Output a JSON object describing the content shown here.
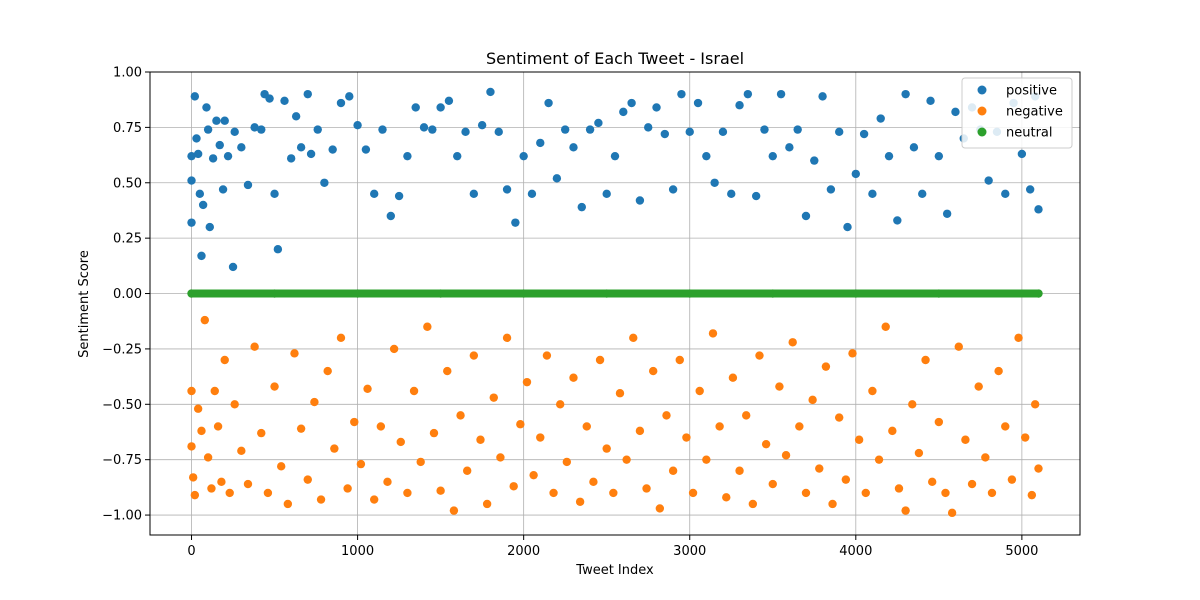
{
  "chart_data": {
    "type": "scatter",
    "title": "Sentiment of Each Tweet - Israel",
    "xlabel": "Tweet Index",
    "ylabel": "Sentiment Score",
    "xlim": [
      -250,
      5350
    ],
    "ylim": [
      -1.09,
      1.0
    ],
    "xticks": [
      0,
      1000,
      2000,
      3000,
      4000,
      5000
    ],
    "yticks": [
      -1.0,
      -0.75,
      -0.5,
      -0.25,
      0.0,
      0.25,
      0.5,
      0.75,
      1.0
    ],
    "xtick_labels": [
      "0",
      "1000",
      "2000",
      "3000",
      "4000",
      "5000"
    ],
    "ytick_labels": [
      "−1.00",
      "−0.75",
      "−0.50",
      "−0.25",
      "0.00",
      "0.25",
      "0.50",
      "0.75",
      "1.00"
    ],
    "grid": true,
    "legend_position": "top-right",
    "x_range_of_points": [
      0,
      5100
    ],
    "series": [
      {
        "name": "positive",
        "color": "#1f77b4",
        "points": [
          [
            0,
            0.62
          ],
          [
            0,
            0.51
          ],
          [
            0,
            0.32
          ],
          [
            20,
            0.89
          ],
          [
            30,
            0.7
          ],
          [
            40,
            0.63
          ],
          [
            50,
            0.45
          ],
          [
            60,
            0.17
          ],
          [
            70,
            0.4
          ],
          [
            90,
            0.84
          ],
          [
            100,
            0.74
          ],
          [
            110,
            0.3
          ],
          [
            130,
            0.61
          ],
          [
            150,
            0.78
          ],
          [
            170,
            0.67
          ],
          [
            190,
            0.47
          ],
          [
            200,
            0.78
          ],
          [
            220,
            0.62
          ],
          [
            250,
            0.12
          ],
          [
            260,
            0.73
          ],
          [
            300,
            0.66
          ],
          [
            340,
            0.49
          ],
          [
            380,
            0.75
          ],
          [
            420,
            0.74
          ],
          [
            440,
            0.9
          ],
          [
            470,
            0.88
          ],
          [
            500,
            0.45
          ],
          [
            520,
            0.2
          ],
          [
            560,
            0.87
          ],
          [
            600,
            0.61
          ],
          [
            630,
            0.8
          ],
          [
            660,
            0.66
          ],
          [
            700,
            0.9
          ],
          [
            720,
            0.63
          ],
          [
            760,
            0.74
          ],
          [
            800,
            0.5
          ],
          [
            850,
            0.65
          ],
          [
            900,
            0.86
          ],
          [
            950,
            0.89
          ],
          [
            1000,
            0.76
          ],
          [
            1050,
            0.65
          ],
          [
            1100,
            0.45
          ],
          [
            1150,
            0.74
          ],
          [
            1200,
            0.35
          ],
          [
            1250,
            0.44
          ],
          [
            1300,
            0.62
          ],
          [
            1350,
            0.84
          ],
          [
            1400,
            0.75
          ],
          [
            1450,
            0.74
          ],
          [
            1500,
            0.84
          ],
          [
            1550,
            0.87
          ],
          [
            1600,
            0.62
          ],
          [
            1650,
            0.73
          ],
          [
            1700,
            0.45
          ],
          [
            1750,
            0.76
          ],
          [
            1800,
            0.91
          ],
          [
            1850,
            0.73
          ],
          [
            1900,
            0.47
          ],
          [
            1950,
            0.32
          ],
          [
            2000,
            0.62
          ],
          [
            2050,
            0.45
          ],
          [
            2100,
            0.68
          ],
          [
            2150,
            0.86
          ],
          [
            2200,
            0.52
          ],
          [
            2250,
            0.74
          ],
          [
            2300,
            0.66
          ],
          [
            2350,
            0.39
          ],
          [
            2400,
            0.74
          ],
          [
            2450,
            0.77
          ],
          [
            2500,
            0.45
          ],
          [
            2550,
            0.62
          ],
          [
            2600,
            0.82
          ],
          [
            2650,
            0.86
          ],
          [
            2700,
            0.42
          ],
          [
            2750,
            0.75
          ],
          [
            2800,
            0.84
          ],
          [
            2850,
            0.72
          ],
          [
            2900,
            0.47
          ],
          [
            2950,
            0.9
          ],
          [
            3000,
            0.73
          ],
          [
            3050,
            0.86
          ],
          [
            3100,
            0.62
          ],
          [
            3150,
            0.5
          ],
          [
            3200,
            0.73
          ],
          [
            3250,
            0.45
          ],
          [
            3300,
            0.85
          ],
          [
            3350,
            0.9
          ],
          [
            3400,
            0.44
          ],
          [
            3450,
            0.74
          ],
          [
            3500,
            0.62
          ],
          [
            3550,
            0.9
          ],
          [
            3600,
            0.66
          ],
          [
            3650,
            0.74
          ],
          [
            3700,
            0.35
          ],
          [
            3750,
            0.6
          ],
          [
            3800,
            0.89
          ],
          [
            3850,
            0.47
          ],
          [
            3900,
            0.73
          ],
          [
            3950,
            0.3
          ],
          [
            4000,
            0.54
          ],
          [
            4050,
            0.72
          ],
          [
            4100,
            0.45
          ],
          [
            4150,
            0.79
          ],
          [
            4200,
            0.62
          ],
          [
            4250,
            0.33
          ],
          [
            4300,
            0.9
          ],
          [
            4350,
            0.66
          ],
          [
            4400,
            0.45
          ],
          [
            4450,
            0.87
          ],
          [
            4500,
            0.62
          ],
          [
            4550,
            0.36
          ],
          [
            4600,
            0.82
          ],
          [
            4650,
            0.7
          ],
          [
            4700,
            0.84
          ],
          [
            4750,
            0.74
          ],
          [
            4800,
            0.51
          ],
          [
            4850,
            0.73
          ],
          [
            4900,
            0.45
          ],
          [
            4950,
            0.86
          ],
          [
            5000,
            0.63
          ],
          [
            5050,
            0.47
          ],
          [
            5080,
            0.89
          ],
          [
            5100,
            0.38
          ]
        ]
      },
      {
        "name": "negative",
        "color": "#ff7f0e",
        "points": [
          [
            0,
            -0.44
          ],
          [
            0,
            -0.69
          ],
          [
            10,
            -0.83
          ],
          [
            20,
            -0.91
          ],
          [
            40,
            -0.52
          ],
          [
            60,
            -0.62
          ],
          [
            80,
            -0.12
          ],
          [
            100,
            -0.74
          ],
          [
            120,
            -0.88
          ],
          [
            140,
            -0.44
          ],
          [
            160,
            -0.6
          ],
          [
            180,
            -0.85
          ],
          [
            200,
            -0.3
          ],
          [
            230,
            -0.9
          ],
          [
            260,
            -0.5
          ],
          [
            300,
            -0.71
          ],
          [
            340,
            -0.86
          ],
          [
            380,
            -0.24
          ],
          [
            420,
            -0.63
          ],
          [
            460,
            -0.9
          ],
          [
            500,
            -0.42
          ],
          [
            540,
            -0.78
          ],
          [
            580,
            -0.95
          ],
          [
            620,
            -0.27
          ],
          [
            660,
            -0.61
          ],
          [
            700,
            -0.84
          ],
          [
            740,
            -0.49
          ],
          [
            780,
            -0.93
          ],
          [
            820,
            -0.35
          ],
          [
            860,
            -0.7
          ],
          [
            900,
            -0.2
          ],
          [
            940,
            -0.88
          ],
          [
            980,
            -0.58
          ],
          [
            1020,
            -0.77
          ],
          [
            1060,
            -0.43
          ],
          [
            1100,
            -0.93
          ],
          [
            1140,
            -0.6
          ],
          [
            1180,
            -0.85
          ],
          [
            1220,
            -0.25
          ],
          [
            1260,
            -0.67
          ],
          [
            1300,
            -0.9
          ],
          [
            1340,
            -0.44
          ],
          [
            1380,
            -0.76
          ],
          [
            1420,
            -0.15
          ],
          [
            1460,
            -0.63
          ],
          [
            1500,
            -0.89
          ],
          [
            1540,
            -0.35
          ],
          [
            1580,
            -0.98
          ],
          [
            1620,
            -0.55
          ],
          [
            1660,
            -0.8
          ],
          [
            1700,
            -0.28
          ],
          [
            1740,
            -0.66
          ],
          [
            1780,
            -0.95
          ],
          [
            1820,
            -0.47
          ],
          [
            1860,
            -0.74
          ],
          [
            1900,
            -0.2
          ],
          [
            1940,
            -0.87
          ],
          [
            1980,
            -0.59
          ],
          [
            2020,
            -0.4
          ],
          [
            2060,
            -0.82
          ],
          [
            2100,
            -0.65
          ],
          [
            2140,
            -0.28
          ],
          [
            2180,
            -0.9
          ],
          [
            2220,
            -0.5
          ],
          [
            2260,
            -0.76
          ],
          [
            2300,
            -0.38
          ],
          [
            2340,
            -0.94
          ],
          [
            2380,
            -0.6
          ],
          [
            2420,
            -0.85
          ],
          [
            2460,
            -0.3
          ],
          [
            2500,
            -0.7
          ],
          [
            2540,
            -0.9
          ],
          [
            2580,
            -0.45
          ],
          [
            2620,
            -0.75
          ],
          [
            2660,
            -0.2
          ],
          [
            2700,
            -0.62
          ],
          [
            2740,
            -0.88
          ],
          [
            2780,
            -0.35
          ],
          [
            2820,
            -0.97
          ],
          [
            2860,
            -0.55
          ],
          [
            2900,
            -0.8
          ],
          [
            2940,
            -0.3
          ],
          [
            2980,
            -0.65
          ],
          [
            3020,
            -0.9
          ],
          [
            3060,
            -0.44
          ],
          [
            3100,
            -0.75
          ],
          [
            3140,
            -0.18
          ],
          [
            3180,
            -0.6
          ],
          [
            3220,
            -0.92
          ],
          [
            3260,
            -0.38
          ],
          [
            3300,
            -0.8
          ],
          [
            3340,
            -0.55
          ],
          [
            3380,
            -0.95
          ],
          [
            3420,
            -0.28
          ],
          [
            3460,
            -0.68
          ],
          [
            3500,
            -0.86
          ],
          [
            3540,
            -0.42
          ],
          [
            3580,
            -0.73
          ],
          [
            3620,
            -0.22
          ],
          [
            3660,
            -0.6
          ],
          [
            3700,
            -0.9
          ],
          [
            3740,
            -0.48
          ],
          [
            3780,
            -0.79
          ],
          [
            3820,
            -0.33
          ],
          [
            3860,
            -0.95
          ],
          [
            3900,
            -0.56
          ],
          [
            3940,
            -0.84
          ],
          [
            3980,
            -0.27
          ],
          [
            4020,
            -0.66
          ],
          [
            4060,
            -0.9
          ],
          [
            4100,
            -0.44
          ],
          [
            4140,
            -0.75
          ],
          [
            4180,
            -0.15
          ],
          [
            4220,
            -0.62
          ],
          [
            4260,
            -0.88
          ],
          [
            4300,
            -0.98
          ],
          [
            4340,
            -0.5
          ],
          [
            4380,
            -0.72
          ],
          [
            4420,
            -0.3
          ],
          [
            4460,
            -0.85
          ],
          [
            4500,
            -0.58
          ],
          [
            4540,
            -0.9
          ],
          [
            4580,
            -0.99
          ],
          [
            4620,
            -0.24
          ],
          [
            4660,
            -0.66
          ],
          [
            4700,
            -0.86
          ],
          [
            4740,
            -0.42
          ],
          [
            4780,
            -0.74
          ],
          [
            4820,
            -0.9
          ],
          [
            4860,
            -0.35
          ],
          [
            4900,
            -0.6
          ],
          [
            4940,
            -0.84
          ],
          [
            4980,
            -0.2
          ],
          [
            5020,
            -0.65
          ],
          [
            5060,
            -0.91
          ],
          [
            5080,
            -0.5
          ],
          [
            5100,
            -0.79
          ]
        ]
      },
      {
        "name": "neutral",
        "color": "#2ca02c",
        "points": [
          [
            0,
            0.0
          ],
          [
            500,
            0.0
          ],
          [
            1000,
            0.0
          ],
          [
            1500,
            0.0
          ],
          [
            2000,
            0.0
          ],
          [
            2500,
            0.0
          ],
          [
            3000,
            0.0
          ],
          [
            3500,
            0.0
          ],
          [
            4000,
            0.0
          ],
          [
            4500,
            0.0
          ],
          [
            5100,
            0.0
          ]
        ]
      }
    ]
  }
}
